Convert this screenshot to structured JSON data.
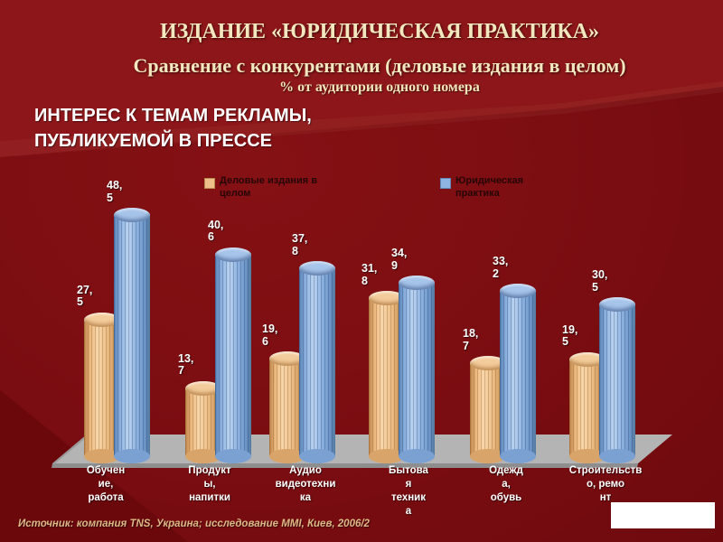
{
  "slide": {
    "title": "ИЗДАНИЕ «ЮРИДИЧЕСКАЯ ПРАКТИКА»",
    "subtitle": "Сравнение с конкурентами (деловые издания в целом)",
    "subtitle2": "% от аудитории одного номера",
    "heading": "ИНТЕРЕС К ТЕМАМ РЕКЛАМЫ,\nПУБЛИКУЕМОЙ В ПРЕССЕ",
    "source": "Источник: компания TNS, Украина; исследование MMI, Киев, 2006/2"
  },
  "chart_data": {
    "type": "bar",
    "style": "3d-cylinder",
    "title": "ИНТЕРЕС К ТЕМАМ РЕКЛАМЫ, ПУБЛИКУЕМОЙ В ПРЕССЕ",
    "unit": "% от аудитории одного номера",
    "categories": [
      "Обучение, работа",
      "Продукты, напитки",
      "Аудио видеотехника",
      "Бытовая техника",
      "Одежда, обувь",
      "Строительство, ремонт"
    ],
    "category_label_lines": [
      "Обучен\nие,\nработа",
      "Продукт\nы,\nнапитки",
      "Аудио\nвидеотехни\nка",
      "Бытова\nя\nтехник\nа",
      "Одежд\nа,\nобувь",
      "Строительств\nо,   ремо\nнт"
    ],
    "series": [
      {
        "name": "Деловые издания в целом",
        "color": "#EEC08A",
        "values": [
          27.5,
          13.7,
          19.6,
          31.8,
          18.7,
          19.5
        ],
        "labels": [
          "27,5",
          "13,7",
          "19,6",
          "31,8",
          "18,7",
          "19,5"
        ]
      },
      {
        "name": "Юридическая практика",
        "color": "#8FB4E1",
        "values": [
          48.5,
          40.6,
          37.8,
          34.9,
          33.2,
          30.5
        ],
        "labels": [
          "48,5",
          "40,6",
          "37,8",
          "34,9",
          "33,2",
          "30,5"
        ]
      }
    ],
    "legend": [
      "Деловые издания в\nцелом",
      "Юридическая\nпрактика"
    ],
    "legend_position": "top",
    "grid": false,
    "ylim": [
      0,
      55
    ],
    "xlabel": "",
    "ylabel": "%"
  }
}
